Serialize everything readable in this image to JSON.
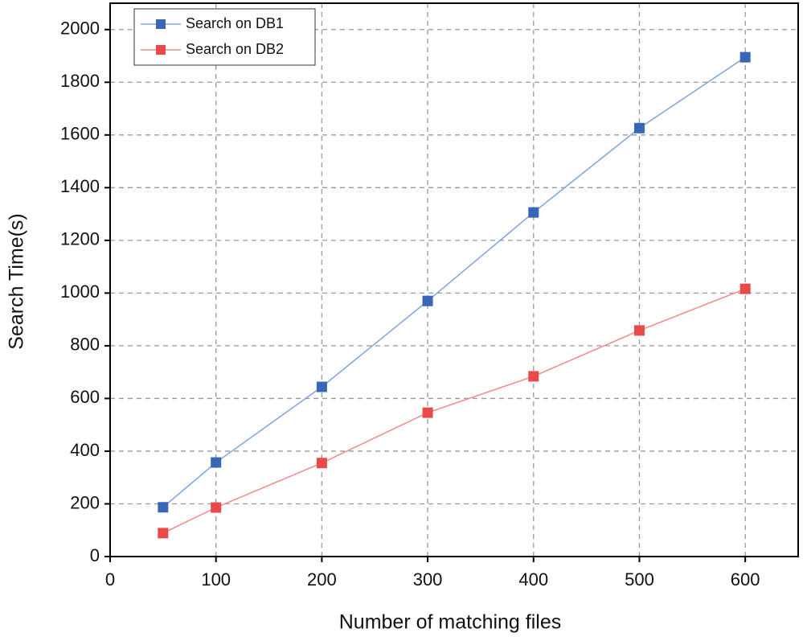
{
  "chart_data": {
    "type": "line",
    "x_label": "Number of matching files",
    "y_label": "Search Time(s)",
    "x": [
      50,
      100,
      200,
      300,
      400,
      500,
      600
    ],
    "series": [
      {
        "name": "Search on DB1",
        "color": "#3a66b8",
        "line_color": "#7fa3dc",
        "values": [
          187,
          357,
          644,
          970,
          1306,
          1626,
          1895
        ]
      },
      {
        "name": "Search on DB2",
        "color": "#e84a4a",
        "line_color": "#f08a8a",
        "values": [
          89,
          186,
          355,
          546,
          684,
          858,
          1016
        ]
      }
    ],
    "xlim": [
      0,
      650
    ],
    "xticks": [
      0,
      100,
      200,
      300,
      400,
      500,
      600
    ],
    "ylim": [
      0,
      2100
    ],
    "yticks": [
      0,
      200,
      400,
      600,
      800,
      1000,
      1200,
      1400,
      1600,
      1800,
      2000
    ],
    "grid": true,
    "legend": "upper left"
  }
}
